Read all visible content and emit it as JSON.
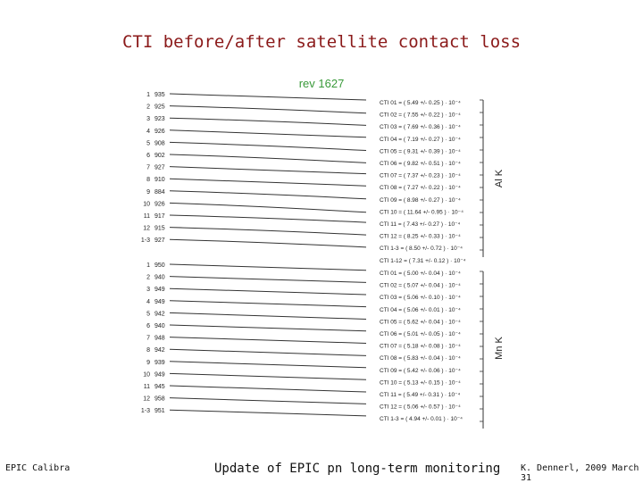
{
  "slide": {
    "title": "CTI before/after satellite contact loss",
    "rev_label": "rev 1627",
    "footer_left": "EPIC Calibra",
    "footer_center": "Update of EPIC pn long-term monitoring",
    "footer_right": "K. Dennerl, 2009 March 31"
  },
  "chart_data": {
    "type": "line",
    "panels": [
      {
        "line_label": "Al K",
        "rows": [
          {
            "ccd": "1",
            "rev": "935",
            "cti": "5.49",
            "err": "0.25",
            "sub": "01"
          },
          {
            "ccd": "2",
            "rev": "925",
            "cti": "7.55",
            "err": "0.22",
            "sub": "02"
          },
          {
            "ccd": "3",
            "rev": "923",
            "cti": "7.69",
            "err": "0.36",
            "sub": "03"
          },
          {
            "ccd": "4",
            "rev": "926",
            "cti": "7.19",
            "err": "0.27",
            "sub": "04"
          },
          {
            "ccd": "5",
            "rev": "908",
            "cti": "9.31",
            "err": "0.39",
            "sub": "05"
          },
          {
            "ccd": "6",
            "rev": "902",
            "cti": "9.82",
            "err": "0.51",
            "sub": "06"
          },
          {
            "ccd": "7",
            "rev": "927",
            "cti": "7.37",
            "err": "0.23",
            "sub": "07"
          },
          {
            "ccd": "8",
            "rev": "910",
            "cti": "7.27",
            "err": "0.22",
            "sub": "08"
          },
          {
            "ccd": "9",
            "rev": "884",
            "cti": "8.98",
            "err": "0.27",
            "sub": "09"
          },
          {
            "ccd": "10",
            "rev": "926",
            "cti": "11.64",
            "err": "0.95",
            "sub": "10"
          },
          {
            "ccd": "11",
            "rev": "917",
            "cti": "7.43",
            "err": "0.27",
            "sub": "11"
          },
          {
            "ccd": "12",
            "rev": "915",
            "cti": "8.25",
            "err": "0.33",
            "sub": "12"
          },
          {
            "ccd": "1-3",
            "rev": "927",
            "cti": "8.50",
            "err": "0.72",
            "sub": "1-3"
          }
        ],
        "extra_row": {
          "cti": "7.31",
          "err": "0.12",
          "sub": "1-12"
        }
      },
      {
        "line_label": "Mn K",
        "rows": [
          {
            "ccd": "1",
            "rev": "950",
            "cti": "5.00",
            "err": "0.04",
            "sub": "01"
          },
          {
            "ccd": "2",
            "rev": "940",
            "cti": "5.07",
            "err": "0.04",
            "sub": "02"
          },
          {
            "ccd": "3",
            "rev": "949",
            "cti": "5.06",
            "err": "0.10",
            "sub": "03"
          },
          {
            "ccd": "4",
            "rev": "949",
            "cti": "5.06",
            "err": "0.01",
            "sub": "04"
          },
          {
            "ccd": "5",
            "rev": "942",
            "cti": "5.62",
            "err": "0.04",
            "sub": "05"
          },
          {
            "ccd": "6",
            "rev": "940",
            "cti": "5.01",
            "err": "0.05",
            "sub": "06"
          },
          {
            "ccd": "7",
            "rev": "948",
            "cti": "5.18",
            "err": "0.08",
            "sub": "07"
          },
          {
            "ccd": "8",
            "rev": "942",
            "cti": "5.83",
            "err": "0.04",
            "sub": "08"
          },
          {
            "ccd": "9",
            "rev": "939",
            "cti": "5.42",
            "err": "0.06",
            "sub": "09"
          },
          {
            "ccd": "10",
            "rev": "949",
            "cti": "5.13",
            "err": "0.15",
            "sub": "10"
          },
          {
            "ccd": "11",
            "rev": "945",
            "cti": "5.49",
            "err": "0.31",
            "sub": "11"
          },
          {
            "ccd": "12",
            "rev": "958",
            "cti": "5.06",
            "err": "0.57",
            "sub": "12"
          },
          {
            "ccd": "1-3",
            "rev": "951",
            "cti": "4.94",
            "err": "0.01",
            "sub": "1-3"
          }
        ]
      }
    ],
    "text_prefix": "CTI",
    "plus_minus": "+/-",
    "unit": "10⁻⁴"
  }
}
